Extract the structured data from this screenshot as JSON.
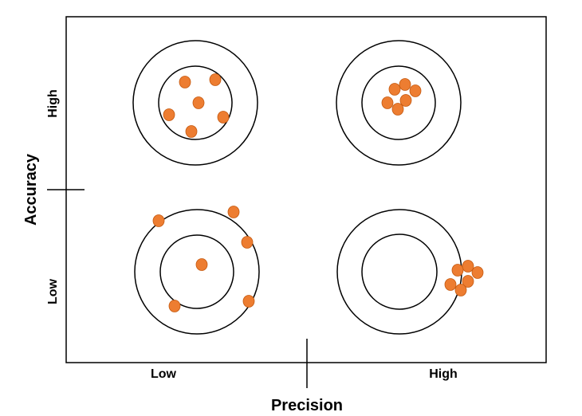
{
  "axes": {
    "x_title": "Precision",
    "y_title": "Accuracy",
    "x_low": "Low",
    "x_high": "High",
    "y_low": "Low",
    "y_high": "High"
  },
  "colors": {
    "shot": "#ED7D31",
    "ring": "#000000",
    "background": "#ffffff"
  },
  "targets": [
    {
      "name": "target-low-precision-high-accuracy",
      "precision": "Low",
      "accuracy": "High",
      "shot_count": 6
    },
    {
      "name": "target-high-precision-high-accuracy",
      "precision": "High",
      "accuracy": "High",
      "shot_count": 6
    },
    {
      "name": "target-low-precision-low-accuracy",
      "precision": "Low",
      "accuracy": "Low",
      "shot_count": 6
    },
    {
      "name": "target-high-precision-low-accuracy",
      "precision": "High",
      "accuracy": "Low",
      "shot_count": 6
    }
  ]
}
